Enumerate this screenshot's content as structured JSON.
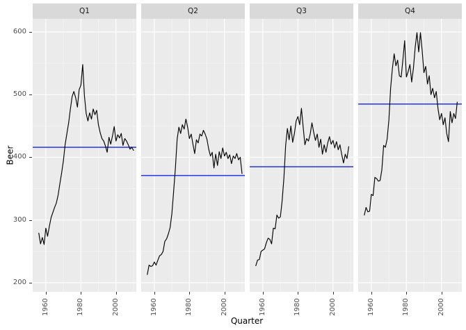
{
  "chart_data": {
    "type": "line",
    "title": "",
    "xlabel": "Quarter",
    "ylabel": "Beer",
    "xlim": [
      1952.5,
      2011.6
    ],
    "ylim": [
      185.5,
      621
    ],
    "x_ticks": [
      "1960",
      "1980",
      "2000"
    ],
    "x_minor": [
      1970,
      1990,
      2010
    ],
    "y_ticks": [
      "600",
      "500",
      "400",
      "300",
      "200"
    ],
    "y_tick_values": [
      600,
      500,
      400,
      300,
      200
    ],
    "y_minor": [
      550,
      450,
      350,
      250
    ],
    "grid": true,
    "legend": "none",
    "facets": [
      {
        "label": "Q1",
        "mean_line": 416,
        "start_year": 1956,
        "values": [
          279,
          262,
          272,
          261,
          287,
          274,
          290,
          304,
          312,
          320,
          327,
          340,
          358,
          375,
          394,
          420,
          438,
          455,
          477,
          497,
          505,
          495,
          480,
          508,
          515,
          548,
          498,
          470,
          458,
          471,
          461,
          477,
          468,
          475,
          452,
          439,
          430,
          426,
          418,
          408,
          432,
          421,
          434,
          449,
          426,
          436,
          431,
          438,
          419,
          430,
          426,
          420,
          413,
          416,
          411
        ]
      },
      {
        "label": "Q2",
        "mean_line": 371,
        "start_year": 1956,
        "values": [
          213,
          228,
          226,
          227,
          233,
          228,
          236,
          243,
          245,
          250,
          266,
          270,
          278,
          288,
          310,
          345,
          383,
          429,
          448,
          438,
          452,
          445,
          461,
          448,
          430,
          437,
          421,
          406,
          428,
          423,
          437,
          434,
          443,
          437,
          429,
          413,
          402,
          408,
          383,
          405,
          387,
          409,
          398,
          415,
          402,
          408,
          398,
          404,
          390,
          402,
          398,
          406,
          396,
          400,
          374
        ]
      },
      {
        "label": "Q3",
        "mean_line": 385,
        "start_year": 1956,
        "values": [
          227,
          236,
          237,
          250,
          252,
          254,
          264,
          271,
          269,
          262,
          287,
          286,
          308,
          303,
          305,
          330,
          367,
          419,
          446,
          428,
          450,
          424,
          438,
          458,
          465,
          452,
          478,
          448,
          420,
          430,
          426,
          437,
          455,
          440,
          427,
          437,
          416,
          429,
          405,
          420,
          408,
          423,
          433,
          421,
          427,
          415,
          425,
          412,
          420,
          404,
          391,
          405,
          398,
          417
        ]
      },
      {
        "label": "Q4",
        "mean_line": 485,
        "start_year": 1956,
        "values": [
          308,
          320,
          313,
          314,
          341,
          339,
          368,
          366,
          362,
          363,
          380,
          419,
          416,
          429,
          459,
          510,
          542,
          565,
          546,
          555,
          530,
          528,
          556,
          586,
          528,
          537,
          548,
          520,
          542,
          575,
          599,
          568,
          599,
          570,
          535,
          545,
          517,
          530,
          500,
          510,
          495,
          505,
          478,
          460,
          470,
          452,
          463,
          438,
          425,
          473,
          455,
          470,
          462,
          488
        ]
      }
    ],
    "colors": {
      "series": "#000000",
      "mean_line": "#2433e8",
      "panel_bg": "#ebebeb",
      "strip_bg": "#d9d9d9",
      "grid_major": "#ffffff",
      "grid_minor": "#f5f5f5",
      "axis_text": "#4d4d4d",
      "tick_mark": "#333333",
      "title_text": "#000000"
    }
  }
}
